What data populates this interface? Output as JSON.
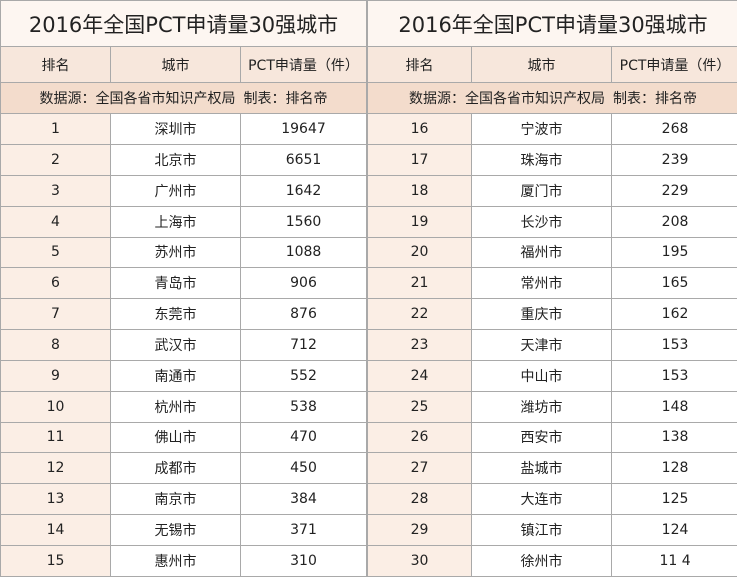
{
  "tables": [
    {
      "title": "2016年全国PCT申请量30强城市",
      "columns": [
        "排名",
        "城市",
        "PCT申请量（件）"
      ],
      "source": "数据源：全国各省市知识产权局",
      "author": "制表：排名帝",
      "rows": [
        [
          1,
          "深圳市",
          19647
        ],
        [
          2,
          "北京市",
          6651
        ],
        [
          3,
          "广州市",
          1642
        ],
        [
          4,
          "上海市",
          1560
        ],
        [
          5,
          "苏州市",
          1088
        ],
        [
          6,
          "青岛市",
          906
        ],
        [
          7,
          "东莞市",
          876
        ],
        [
          8,
          "武汉市",
          712
        ],
        [
          9,
          "南通市",
          552
        ],
        [
          10,
          "杭州市",
          538
        ],
        [
          11,
          "佛山市",
          470
        ],
        [
          12,
          "成都市",
          450
        ],
        [
          13,
          "南京市",
          384
        ],
        [
          14,
          "无锡市",
          371
        ],
        [
          15,
          "惠州市",
          310
        ]
      ]
    },
    {
      "title": "2016年全国PCT申请量30强城市",
      "columns": [
        "排名",
        "城市",
        "PCT申请量（件）"
      ],
      "source": "数据源：全国各省市知识产权局",
      "author": "制表：排名帝",
      "rows": [
        [
          16,
          "宁波市",
          268
        ],
        [
          17,
          "珠海市",
          239
        ],
        [
          18,
          "厦门市",
          229
        ],
        [
          19,
          "长沙市",
          208
        ],
        [
          20,
          "福州市",
          195
        ],
        [
          21,
          "常州市",
          165
        ],
        [
          22,
          "重庆市",
          162
        ],
        [
          23,
          "天津市",
          153
        ],
        [
          24,
          "中山市",
          153
        ],
        [
          25,
          "潍坊市",
          148
        ],
        [
          26,
          "西安市",
          138
        ],
        [
          27,
          "盐城市",
          128
        ],
        [
          28,
          "大连市",
          125
        ],
        [
          29,
          "镇江市",
          124
        ],
        [
          30,
          "徐州市",
          "11 4"
        ]
      ]
    }
  ]
}
